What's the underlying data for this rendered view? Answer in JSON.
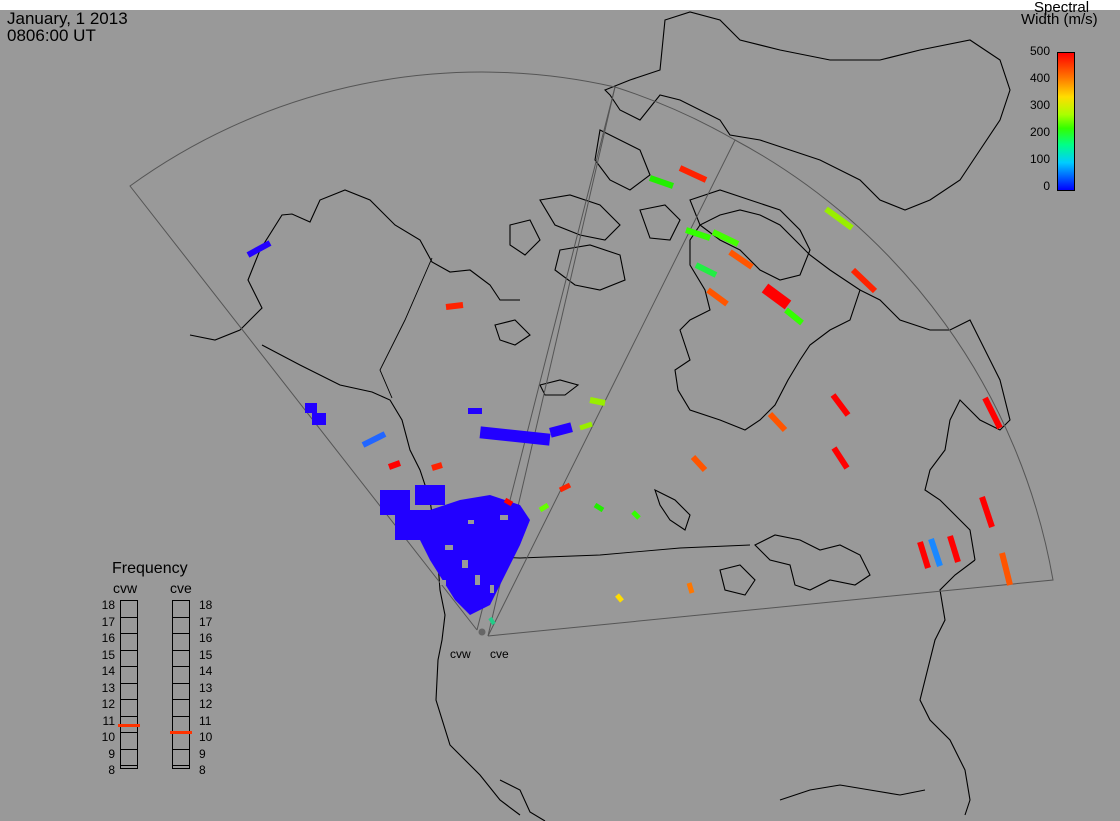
{
  "title": {
    "date": "January, 1 2013",
    "time": "0806:00 UT"
  },
  "colorbar": {
    "title_line1": "Spectral",
    "title_line2": "Width (m/s)",
    "ticks": [
      "500",
      "400",
      "300",
      "200",
      "100",
      "0"
    ]
  },
  "frequency_panel": {
    "title": "Frequency",
    "radar1": "cvw",
    "radar2": "cve",
    "levels": [
      "18",
      "17",
      "16",
      "15",
      "14",
      "13",
      "12",
      "11",
      "10",
      "9",
      "8"
    ],
    "cvw_value_mhz": 10.9,
    "cve_value_mhz": 10.5
  },
  "sites": {
    "cvw": "cvw",
    "cve": "cve"
  },
  "colors": {
    "background": "#999999",
    "scatter_low": "#2200ff",
    "scatter_high": "#ff0000"
  }
}
